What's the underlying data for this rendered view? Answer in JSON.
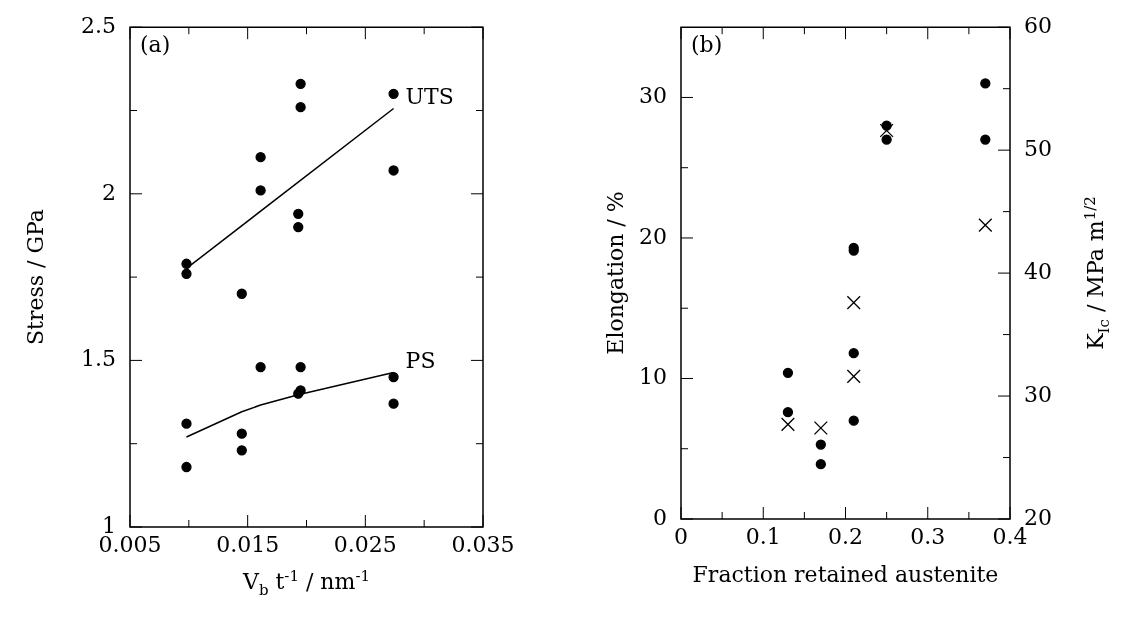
{
  "chart_data": [
    {
      "type": "scatter",
      "xlabel": "V$_{b}$ t$^{-1}$ / nm$^{-1}$",
      "ylabel": "Stress / GPa",
      "xlim": [
        0.005,
        0.035
      ],
      "xticks": [
        0.005,
        {
          "value": 0.01,
          "label": null
        },
        0.015,
        {
          "value": 0.02,
          "label": null
        },
        0.025,
        {
          "value": 0.03,
          "label": null
        },
        0.035
      ],
      "ylim": [
        1,
        2.5
      ],
      "yticks": [
        1,
        {
          "value": 1.25,
          "label": null
        },
        1.5,
        {
          "value": 1.75,
          "label": null
        },
        2,
        {
          "value": 2.25,
          "label": null
        },
        2.5
      ],
      "grid": false,
      "legend": false,
      "annotations": [
        "(a)",
        {
          "text": "UTS",
          "x": 0.0274,
          "y": 2.256
        },
        {
          "text": "PS",
          "x": 0.0274,
          "y": 1.464
        }
      ],
      "series": [
        {
          "type": "scatter",
          "marker": "circle",
          "color": "#000000",
          "x": [
            0.0098,
            0.0098,
            0.0145,
            0.0161,
            0.0161,
            0.0195,
            0.0195,
            0.0193,
            0.0193,
            0.0274,
            0.0274
          ],
          "values": [
            1.79,
            1.76,
            1.7,
            2.11,
            2.01,
            2.33,
            2.26,
            1.94,
            1.9,
            2.3,
            2.07
          ]
        },
        {
          "type": "scatter",
          "marker": "circle",
          "color": "#000000",
          "x": [
            0.0098,
            0.0098,
            0.0145,
            0.0145,
            0.0161,
            0.0195,
            0.0195,
            0.0193,
            0.0274,
            0.0274
          ],
          "values": [
            1.31,
            1.18,
            1.28,
            1.23,
            1.48,
            1.48,
            1.41,
            1.4,
            1.45,
            1.37
          ]
        },
        {
          "type": "line",
          "marker": "none",
          "color": "#000000",
          "x": [
            0.0098,
            0.0274
          ],
          "values": [
            1.776,
            2.256
          ]
        },
        {
          "type": "line",
          "marker": "none",
          "color": "#000000",
          "x": [
            0.0098,
            0.0145,
            0.0161,
            0.0193,
            0.0274
          ],
          "values": [
            1.27,
            1.346,
            1.366,
            1.397,
            1.464
          ]
        }
      ]
    },
    {
      "type": "scatter",
      "xlabel": "Fraction retained austenite",
      "ylabel": "Elongation / %",
      "y2label": "K$_{Ic}$ / MPa m$^{1/2}$",
      "xlim": [
        0,
        0.4
      ],
      "xticks": [
        0,
        {
          "value": 0.05,
          "label": null
        },
        0.1,
        {
          "value": 0.15,
          "label": null
        },
        0.2,
        {
          "value": 0.25,
          "label": null
        },
        0.3,
        {
          "value": 0.35,
          "label": null
        },
        0.4
      ],
      "ylim": [
        0,
        35
      ],
      "yticks": [
        0,
        {
          "value": 5,
          "label": null
        },
        10,
        {
          "value": 15,
          "label": null
        },
        20,
        {
          "value": 25,
          "label": null
        },
        30
      ],
      "y2lim": [
        20,
        60
      ],
      "y2ticks": [
        20,
        {
          "value": 25,
          "label": null
        },
        30,
        {
          "value": 35,
          "label": null
        },
        40,
        {
          "value": 45,
          "label": null
        },
        50,
        {
          "value": 55,
          "label": null
        },
        60
      ],
      "grid": false,
      "legend": false,
      "annotations": [
        "(b)"
      ],
      "series": [
        {
          "type": "scatter",
          "marker": "circle",
          "color": "#000000",
          "x": [
            0.13,
            0.13,
            0.17,
            0.17,
            0.21,
            0.21,
            0.21,
            0.21,
            0.25,
            0.25,
            0.37,
            0.37
          ],
          "values": [
            10.4,
            7.6,
            5.3,
            3.9,
            19.3,
            19.1,
            11.8,
            7.0,
            28.0,
            27.0,
            31.0,
            27.0
          ]
        },
        {
          "type": "scatter",
          "marker": "cross",
          "color": "#000000",
          "axis": "y2",
          "x": [
            0.13,
            0.17,
            0.21,
            0.21,
            0.25,
            0.37
          ],
          "values": [
            27.7,
            27.4,
            37.6,
            31.6,
            51.6,
            43.9
          ]
        }
      ]
    }
  ]
}
